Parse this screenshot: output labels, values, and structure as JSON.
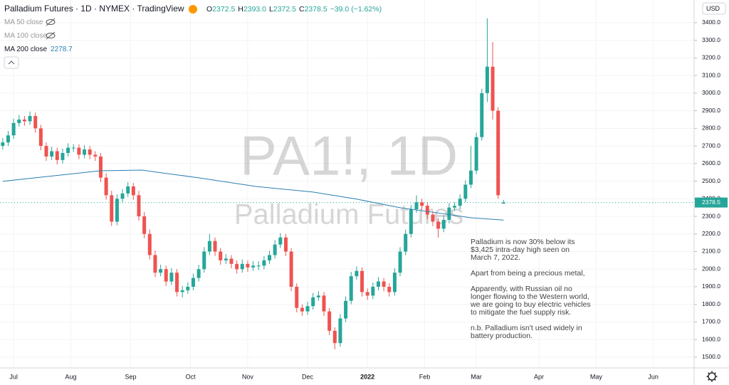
{
  "chart_data": {
    "type": "candlestick",
    "title": "Palladium Futures · 1D · NYMEX · TradingView",
    "ohlc": [
      {
        "key": "O",
        "value": "2372.5"
      },
      {
        "key": "H",
        "value": "2393.0"
      },
      {
        "key": "L",
        "value": "2372.5"
      },
      {
        "key": "C",
        "value": "2378.5"
      }
    ],
    "change": "−39.0 (−1.62%)",
    "indicators": [
      {
        "name": "MA 50 close"
      },
      {
        "name": "MA 100 close"
      },
      {
        "name": "MA 200 close",
        "value": "2278.7"
      }
    ],
    "currency": "USD",
    "watermark": "PA1!, 1D",
    "watermark_subtitle": "Palladium Futures",
    "annotation": [
      "Palladium is now 30% below its",
      "$3,425 intra-day high seen on",
      "March 7, 2022.",
      "",
      "Apart from being a precious metal,",
      "",
      "Apparently, with Russian oil no",
      "longer flowing to the Western world,",
      "we are going to buy electric vehicles",
      "to mitigate the fuel supply risk.",
      "",
      "n.b. Palladium isn't used widely in",
      "battery production."
    ],
    "last_price_label": "2378.5",
    "up_color": "#26a69a",
    "down_color": "#ef5350",
    "xlim": [
      -1,
      254
    ],
    "xticks": [
      {
        "value": 4,
        "label": "Jul"
      },
      {
        "value": 25,
        "label": "Aug"
      },
      {
        "value": 47,
        "label": "Sep"
      },
      {
        "value": 69,
        "label": "Oct"
      },
      {
        "value": 90,
        "label": "Nov"
      },
      {
        "value": 112,
        "label": "Dec"
      },
      {
        "value": 134,
        "label": "2022"
      },
      {
        "value": 155,
        "label": "Feb"
      },
      {
        "value": 174,
        "label": "Mar"
      },
      {
        "value": 197,
        "label": "Apr"
      },
      {
        "value": 218,
        "label": "May"
      },
      {
        "value": 239,
        "label": "Jun"
      }
    ],
    "ylim": [
      1439,
      3529
    ],
    "yticks": [
      {
        "value": 1500,
        "label": "1500.0"
      },
      {
        "value": 1600,
        "label": "1600.0"
      },
      {
        "value": 1700,
        "label": "1700.0"
      },
      {
        "value": 1800,
        "label": "1800.0"
      },
      {
        "value": 1900,
        "label": "1900.0"
      },
      {
        "value": 2000,
        "label": "2000.0"
      },
      {
        "value": 2100,
        "label": "2100.0"
      },
      {
        "value": 2200,
        "label": "2200.0"
      },
      {
        "value": 2300,
        "label": "2300.0"
      },
      {
        "value": 2400,
        "label": "2400.0"
      },
      {
        "value": 2500,
        "label": "2500.0"
      },
      {
        "value": 2600,
        "label": "2600.0"
      },
      {
        "value": 2700,
        "label": "2700.0"
      },
      {
        "value": 2800,
        "label": "2800.0"
      },
      {
        "value": 2900,
        "label": "2900.0"
      },
      {
        "value": 3000,
        "label": "3000.0"
      },
      {
        "value": 3100,
        "label": "3100.0"
      },
      {
        "value": 3200,
        "label": "3200.0"
      },
      {
        "value": 3300,
        "label": "3300.0"
      },
      {
        "value": 3400,
        "label": "3400.0"
      }
    ],
    "x": [
      0,
      2,
      4,
      6,
      8,
      10,
      12,
      14,
      16,
      18,
      20,
      22,
      24,
      26,
      28,
      30,
      32,
      34,
      36,
      38,
      40,
      42,
      44,
      46,
      48,
      50,
      52,
      54,
      56,
      58,
      60,
      62,
      64,
      66,
      68,
      70,
      72,
      74,
      76,
      78,
      80,
      82,
      84,
      86,
      88,
      90,
      92,
      94,
      96,
      98,
      100,
      102,
      104,
      106,
      108,
      110,
      112,
      114,
      116,
      118,
      120,
      122,
      124,
      126,
      128,
      130,
      132,
      134,
      136,
      138,
      140,
      142,
      144,
      146,
      148,
      150,
      152,
      154,
      156,
      158,
      160,
      162,
      164,
      166,
      168,
      170,
      172,
      174,
      176,
      178,
      180,
      182,
      184
    ],
    "candles": [
      [
        2700,
        2745,
        2680,
        2720
      ],
      [
        2720,
        2785,
        2700,
        2760
      ],
      [
        2760,
        2855,
        2740,
        2830
      ],
      [
        2830,
        2875,
        2810,
        2850
      ],
      [
        2850,
        2870,
        2815,
        2840
      ],
      [
        2840,
        2895,
        2820,
        2870
      ],
      [
        2870,
        2890,
        2775,
        2800
      ],
      [
        2800,
        2820,
        2675,
        2700
      ],
      [
        2700,
        2720,
        2615,
        2640
      ],
      [
        2640,
        2695,
        2620,
        2670
      ],
      [
        2670,
        2690,
        2595,
        2620
      ],
      [
        2620,
        2685,
        2600,
        2660
      ],
      [
        2660,
        2715,
        2640,
        2690
      ],
      [
        2690,
        2710,
        2665,
        2690
      ],
      [
        2690,
        2710,
        2625,
        2650
      ],
      [
        2650,
        2705,
        2630,
        2680
      ],
      [
        2680,
        2700,
        2625,
        2650
      ],
      [
        2650,
        2670,
        2615,
        2640
      ],
      [
        2640,
        2660,
        2495,
        2520
      ],
      [
        2520,
        2545,
        2395,
        2420
      ],
      [
        2420,
        2445,
        2245,
        2270
      ],
      [
        2270,
        2425,
        2250,
        2400
      ],
      [
        2400,
        2455,
        2380,
        2430
      ],
      [
        2430,
        2495,
        2410,
        2470
      ],
      [
        2470,
        2490,
        2395,
        2420
      ],
      [
        2420,
        2445,
        2275,
        2300
      ],
      [
        2300,
        2325,
        2175,
        2200
      ],
      [
        2200,
        2225,
        2055,
        2080
      ],
      [
        2080,
        2105,
        1955,
        1980
      ],
      [
        1980,
        2025,
        1960,
        2000
      ],
      [
        2000,
        2020,
        1905,
        1930
      ],
      [
        1930,
        2005,
        1910,
        1980
      ],
      [
        1980,
        2000,
        1845,
        1870
      ],
      [
        1870,
        1905,
        1840,
        1880
      ],
      [
        1880,
        1925,
        1860,
        1900
      ],
      [
        1900,
        1975,
        1880,
        1950
      ],
      [
        1950,
        2025,
        1930,
        2000
      ],
      [
        2000,
        2125,
        1980,
        2100
      ],
      [
        2100,
        2200,
        2080,
        2160
      ],
      [
        2160,
        2180,
        2075,
        2100
      ],
      [
        2100,
        2120,
        2025,
        2050
      ],
      [
        2050,
        2085,
        2030,
        2060
      ],
      [
        2060,
        2080,
        2005,
        2030
      ],
      [
        2030,
        2050,
        1975,
        2000
      ],
      [
        2000,
        2055,
        1980,
        2030
      ],
      [
        2030,
        2050,
        1985,
        2010
      ],
      [
        2010,
        2045,
        1990,
        2020
      ],
      [
        2020,
        2045,
        1995,
        2020
      ],
      [
        2020,
        2075,
        2000,
        2050
      ],
      [
        2050,
        2105,
        2030,
        2080
      ],
      [
        2080,
        2165,
        2060,
        2140
      ],
      [
        2140,
        2205,
        2120,
        2180
      ],
      [
        2180,
        2200,
        2075,
        2100
      ],
      [
        2100,
        2120,
        1875,
        1900
      ],
      [
        1900,
        1920,
        1755,
        1780
      ],
      [
        1780,
        1800,
        1735,
        1760
      ],
      [
        1760,
        1815,
        1740,
        1790
      ],
      [
        1790,
        1865,
        1770,
        1840
      ],
      [
        1840,
        1875,
        1820,
        1850
      ],
      [
        1850,
        1870,
        1735,
        1760
      ],
      [
        1760,
        1780,
        1625,
        1650
      ],
      [
        1650,
        1670,
        1545,
        1580
      ],
      [
        1580,
        1745,
        1560,
        1720
      ],
      [
        1720,
        1845,
        1700,
        1820
      ],
      [
        1820,
        1985,
        1800,
        1960
      ],
      [
        1960,
        2015,
        1940,
        1990
      ],
      [
        1990,
        2010,
        1845,
        1870
      ],
      [
        1870,
        1890,
        1825,
        1850
      ],
      [
        1850,
        1925,
        1830,
        1900
      ],
      [
        1900,
        1955,
        1880,
        1930
      ],
      [
        1930,
        1950,
        1875,
        1900
      ],
      [
        1900,
        1920,
        1845,
        1870
      ],
      [
        1870,
        2005,
        1850,
        1980
      ],
      [
        1980,
        2125,
        1960,
        2100
      ],
      [
        2100,
        2225,
        2080,
        2200
      ],
      [
        2200,
        2365,
        2180,
        2340
      ],
      [
        2340,
        2420,
        2320,
        2380
      ],
      [
        2380,
        2400,
        2335,
        2360
      ],
      [
        2360,
        2380,
        2285,
        2310
      ],
      [
        2310,
        2330,
        2245,
        2270
      ],
      [
        2270,
        2290,
        2180,
        2230
      ],
      [
        2230,
        2305,
        2210,
        2280
      ],
      [
        2280,
        2375,
        2260,
        2350
      ],
      [
        2350,
        2380,
        2330,
        2360
      ],
      [
        2360,
        2425,
        2340,
        2400
      ],
      [
        2400,
        2505,
        2380,
        2480
      ],
      [
        2480,
        2700,
        2460,
        2560
      ],
      [
        2560,
        2775,
        2540,
        2750
      ],
      [
        2750,
        3025,
        2730,
        3000
      ],
      [
        3000,
        3425,
        2950,
        3150
      ],
      [
        3150,
        3290,
        2850,
        2900
      ],
      [
        2900,
        2920,
        2400,
        2420
      ],
      [
        2372.5,
        2393,
        2372.5,
        2378.5
      ]
    ],
    "ma": {
      "name": "MA 200",
      "color": "#2a7fb0",
      "x": [
        0,
        36,
        51,
        72,
        93,
        114,
        130,
        146,
        161,
        172,
        184
      ],
      "values": [
        2499,
        2559,
        2563,
        2519,
        2470,
        2438,
        2398,
        2349,
        2317,
        2292,
        2279
      ]
    }
  }
}
